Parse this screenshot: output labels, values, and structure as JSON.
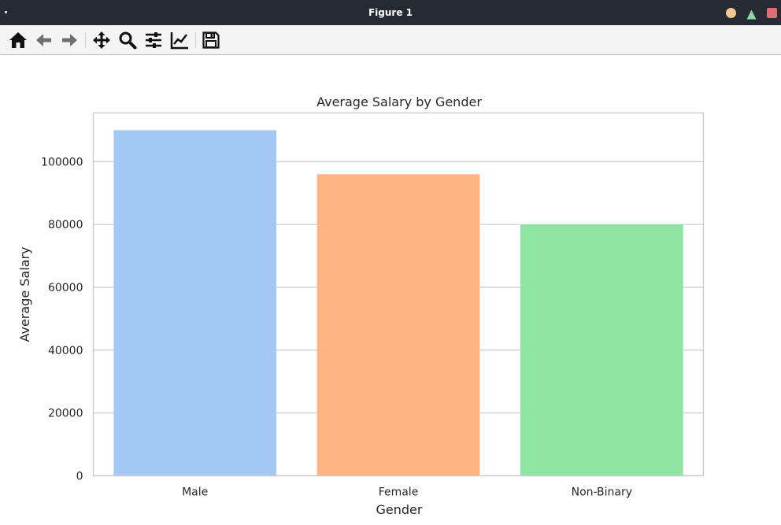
{
  "window": {
    "title": "Figure 1",
    "colors": {
      "titlebar": "#262a33",
      "minimize": "#f3c78e",
      "maximize": "#8fd4a6",
      "close": "#e06a78"
    }
  },
  "toolbar": {
    "buttons": [
      {
        "name": "home-button",
        "icon": "home-icon"
      },
      {
        "name": "back-button",
        "icon": "arrow-left-icon"
      },
      {
        "name": "forward-button",
        "icon": "arrow-right-icon"
      },
      {
        "name": "pan-button",
        "icon": "move-icon"
      },
      {
        "name": "zoom-button",
        "icon": "search-icon"
      },
      {
        "name": "configure-subplots-button",
        "icon": "sliders-icon"
      },
      {
        "name": "edit-axis-button",
        "icon": "line-chart-icon"
      },
      {
        "name": "save-button",
        "icon": "save-icon"
      }
    ]
  },
  "chart_data": {
    "type": "bar",
    "title": "Average Salary by Gender",
    "xlabel": "Gender",
    "ylabel": "Average Salary",
    "categories": [
      "Male",
      "Female",
      "Non-Binary"
    ],
    "values": [
      110000,
      96000,
      80000
    ],
    "colors": [
      "#a1c9f4",
      "#ffb482",
      "#8de5a1"
    ],
    "ylim": [
      0,
      115500
    ],
    "yticks": [
      0,
      20000,
      40000,
      60000,
      80000,
      100000
    ],
    "ytick_labels": [
      "0",
      "20000",
      "40000",
      "60000",
      "80000",
      "100000"
    ],
    "grid": "horizontal",
    "legend": "none"
  }
}
